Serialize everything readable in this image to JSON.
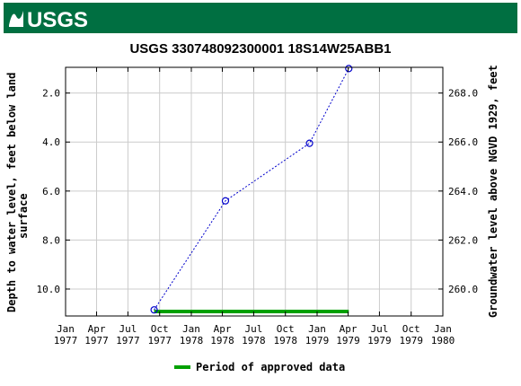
{
  "header": {
    "logo_text": "USGS",
    "bg_color": "#006f41"
  },
  "chart_data": {
    "type": "line",
    "title": "USGS 330748092300001 18S14W25ABB1",
    "ylabel_left": "Depth to water level, feet below land surface",
    "ylabel_right": "Groundwater level above NGVD 1929, feet",
    "x_ticks": [
      {
        "date": "1977-01-01",
        "label_month": "Jan",
        "label_year": "1977"
      },
      {
        "date": "1977-04-01",
        "label_month": "Apr",
        "label_year": "1977"
      },
      {
        "date": "1977-07-01",
        "label_month": "Jul",
        "label_year": "1977"
      },
      {
        "date": "1977-10-01",
        "label_month": "Oct",
        "label_year": "1977"
      },
      {
        "date": "1978-01-01",
        "label_month": "Jan",
        "label_year": "1978"
      },
      {
        "date": "1978-04-01",
        "label_month": "Apr",
        "label_year": "1978"
      },
      {
        "date": "1978-07-01",
        "label_month": "Jul",
        "label_year": "1978"
      },
      {
        "date": "1978-10-01",
        "label_month": "Oct",
        "label_year": "1978"
      },
      {
        "date": "1979-01-01",
        "label_month": "Jan",
        "label_year": "1979"
      },
      {
        "date": "1979-04-01",
        "label_month": "Apr",
        "label_year": "1979"
      },
      {
        "date": "1979-07-01",
        "label_month": "Jul",
        "label_year": "1979"
      },
      {
        "date": "1979-10-01",
        "label_month": "Oct",
        "label_year": "1979"
      },
      {
        "date": "1980-01-01",
        "label_month": "Jan",
        "label_year": "1980"
      }
    ],
    "xlim": [
      "1977-01-01",
      "1980-01-01"
    ],
    "ylim_left": [
      11.1,
      0.95
    ],
    "y_ticks_left": [
      {
        "value": 2.0,
        "label": "2.0"
      },
      {
        "value": 4.0,
        "label": "4.0"
      },
      {
        "value": 6.0,
        "label": "6.0"
      },
      {
        "value": 8.0,
        "label": "8.0"
      },
      {
        "value": 10.0,
        "label": "10.0"
      }
    ],
    "y_ticks_right": [
      {
        "value": 268.0,
        "label": "268.0"
      },
      {
        "value": 266.0,
        "label": "266.0"
      },
      {
        "value": 264.0,
        "label": "264.0"
      },
      {
        "value": 262.0,
        "label": "262.0"
      },
      {
        "value": 260.0,
        "label": "260.0"
      }
    ],
    "datum_offset": 270.0,
    "series": [
      {
        "points": [
          {
            "date": "1977-09-15",
            "depth": 10.85
          },
          {
            "date": "1978-04-10",
            "depth": 6.4
          },
          {
            "date": "1978-12-10",
            "depth": 4.05
          },
          {
            "date": "1979-04-03",
            "depth": 1.0
          }
        ],
        "color": "#0000cc"
      }
    ],
    "approved_period": {
      "start": "1977-09-15",
      "end": "1979-04-03",
      "color": "#00a000"
    },
    "legend": {
      "label": "Period of approved data",
      "placement": "bottom-center"
    },
    "grid": true
  }
}
